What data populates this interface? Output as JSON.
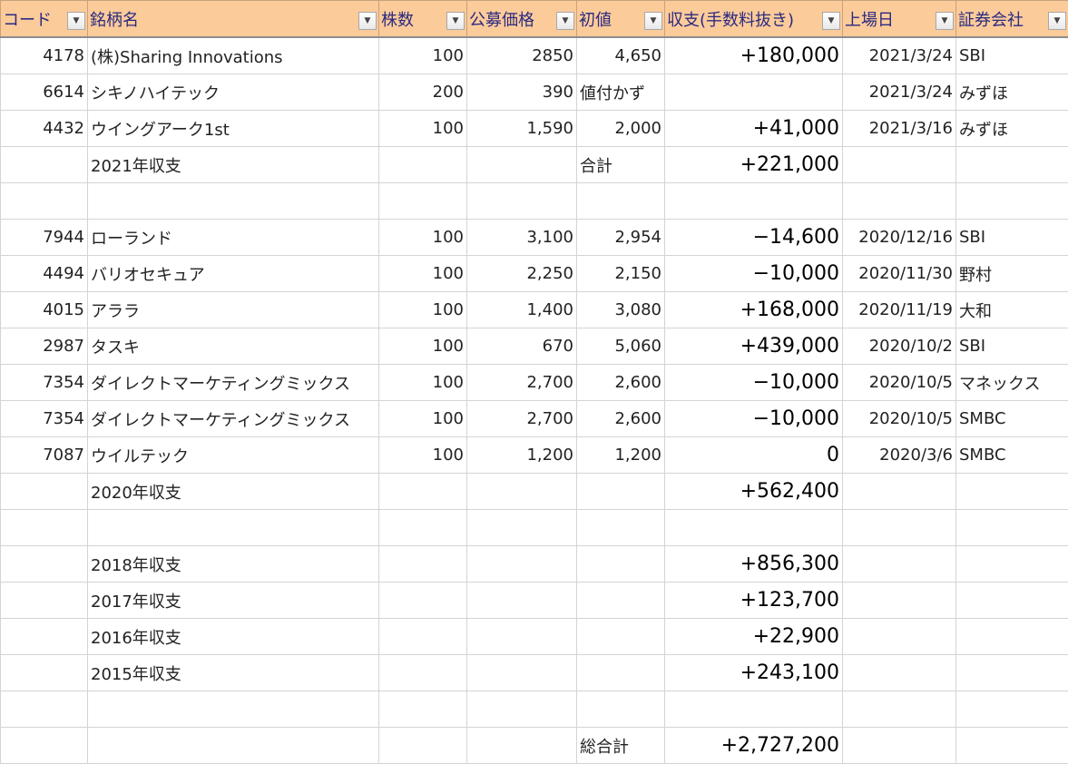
{
  "header": [
    {
      "label": "コード",
      "icon": "dropdown-icon"
    },
    {
      "label": "銘柄名",
      "icon": "dropdown-icon"
    },
    {
      "label": "株数",
      "icon": "dropdown-icon"
    },
    {
      "label": "公募価格",
      "icon": "dropdown-icon"
    },
    {
      "label": "初値",
      "icon": "dropdown-icon"
    },
    {
      "label": "収支(手数料抜き)",
      "icon": "dropdown-icon"
    },
    {
      "label": "上場日",
      "icon": "filter-icon"
    },
    {
      "label": "証券会社",
      "icon": "dropdown-icon"
    }
  ],
  "rows": [
    [
      "4178",
      "(株)Sharing  Innovations",
      "100",
      "2850",
      "4,650",
      "+180,000",
      "2021/3/24",
      "SBI"
    ],
    [
      "6614",
      "シキノハイテック",
      "200",
      "390",
      "値付かず",
      "",
      "2021/3/24",
      "みずほ"
    ],
    [
      "4432",
      "ウイングアーク1st",
      "100",
      "1,590",
      "2,000",
      "+41,000",
      "2021/3/16",
      "みずほ"
    ],
    [
      "",
      "2021年収支",
      "",
      "",
      "合計",
      "+221,000",
      "",
      ""
    ],
    [
      "",
      "",
      "",
      "",
      "",
      "",
      "",
      ""
    ],
    [
      "7944",
      "ローランド",
      "100",
      "3,100",
      "2,954",
      "−14,600",
      "2020/12/16",
      "SBI"
    ],
    [
      "4494",
      "バリオセキュア",
      "100",
      "2,250",
      "2,150",
      "−10,000",
      "2020/11/30",
      "野村"
    ],
    [
      "4015",
      "アララ",
      "100",
      "1,400",
      "3,080",
      "+168,000",
      "2020/11/19",
      "大和"
    ],
    [
      "2987",
      "タスキ",
      "100",
      "670",
      "5,060",
      "+439,000",
      "2020/10/2",
      "SBI"
    ],
    [
      "7354",
      "ダイレクトマーケティングミックス",
      "100",
      "2,700",
      "2,600",
      "−10,000",
      "2020/10/5",
      "マネックス"
    ],
    [
      "7354",
      "ダイレクトマーケティングミックス",
      "100",
      "2,700",
      "2,600",
      "−10,000",
      "2020/10/5",
      "SMBC"
    ],
    [
      "7087",
      "ウイルテック",
      "100",
      "1,200",
      "1,200",
      "0",
      "2020/3/6",
      "SMBC"
    ],
    [
      "",
      "2020年収支",
      "",
      "",
      "",
      "+562,400",
      "",
      ""
    ],
    [
      "",
      "",
      "",
      "",
      "",
      "",
      "",
      ""
    ],
    [
      "",
      "2018年収支",
      "",
      "",
      "",
      "+856,300",
      "",
      ""
    ],
    [
      "",
      "2017年収支",
      "",
      "",
      "",
      "+123,700",
      "",
      ""
    ],
    [
      "",
      "2016年収支",
      "",
      "",
      "",
      "+22,900",
      "",
      ""
    ],
    [
      "",
      "2015年収支",
      "",
      "",
      "",
      "+243,100",
      "",
      ""
    ],
    [
      "",
      "",
      "",
      "",
      "",
      "",
      "",
      ""
    ],
    [
      "",
      "",
      "",
      "",
      "総合計",
      "+2,727,200",
      "",
      ""
    ]
  ],
  "colors": {
    "header_bg": "#fccb9a",
    "header_text": "#2a2a80"
  }
}
